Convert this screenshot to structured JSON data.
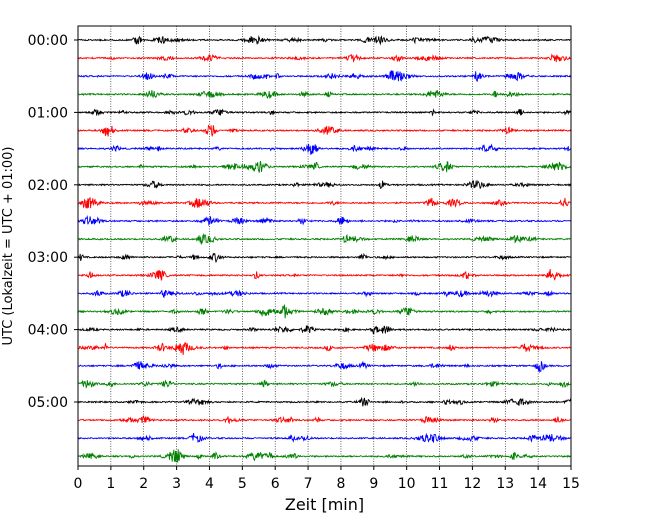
{
  "chart_data": {
    "type": "line",
    "subtype": "helicorder",
    "xlabel": "Zeit  [min]",
    "ylabel": "UTC (Lokalzeit = UTC + 01:00)",
    "xlim": [
      0,
      15
    ],
    "x_ticks": [
      0,
      1,
      2,
      3,
      4,
      5,
      6,
      7,
      8,
      9,
      10,
      11,
      12,
      13,
      14,
      15
    ],
    "y_ticks": [
      "00:00",
      "01:00",
      "02:00",
      "03:00",
      "04:00",
      "05:00"
    ],
    "trace_count": 24,
    "trace_interval_minutes": 15,
    "trace_colors": [
      "#000000",
      "#ff0000",
      "#0000ff",
      "#008000"
    ],
    "vertical_grid": "dotted",
    "grid": true,
    "legend": "none"
  }
}
